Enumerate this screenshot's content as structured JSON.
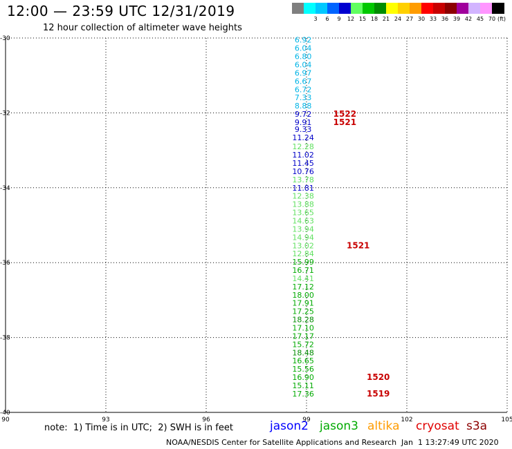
{
  "header": {
    "title": "12:00 — 23:59 UTC 12/31/2019",
    "subtitle": "12 hour collection of altimeter wave heights"
  },
  "colorbar": {
    "unit": "(ft)",
    "swatches": [
      {
        "color": "#7f7f7f",
        "label": ""
      },
      {
        "color": "#00ffff",
        "label": "3"
      },
      {
        "color": "#00c8ff",
        "label": "6"
      },
      {
        "color": "#0064ff",
        "label": "9"
      },
      {
        "color": "#0000d0",
        "label": "12"
      },
      {
        "color": "#60ff60",
        "label": "15"
      },
      {
        "color": "#00c800",
        "label": "18"
      },
      {
        "color": "#008c00",
        "label": "21"
      },
      {
        "color": "#ffff00",
        "label": "24"
      },
      {
        "color": "#ffd000",
        "label": "27"
      },
      {
        "color": "#ff9c00",
        "label": "30"
      },
      {
        "color": "#ff0000",
        "label": "33"
      },
      {
        "color": "#c80000",
        "label": "36"
      },
      {
        "color": "#8c0000",
        "label": "39"
      },
      {
        "color": "#a0009c",
        "label": "42"
      },
      {
        "color": "#d2b4ff",
        "label": "45"
      },
      {
        "color": "#ff96ff",
        "label": "70"
      },
      {
        "color": "#000000",
        "label": ""
      }
    ]
  },
  "chart_data": {
    "type": "scatter",
    "xlim": [
      90,
      105
    ],
    "ylim": [
      -40,
      -30
    ],
    "xticks": [
      "90",
      "93",
      "96",
      "99",
      "102",
      "105"
    ],
    "yticks": [
      "-30",
      "-32",
      "-34",
      "-36",
      "-38",
      "-40"
    ],
    "grid": true,
    "points": [
      {
        "lon": 98.9,
        "lat": -30.05,
        "v": "6.92",
        "color": "#00b4e6"
      },
      {
        "lon": 98.9,
        "lat": -30.27,
        "v": "6.04",
        "color": "#00b4e6"
      },
      {
        "lon": 98.9,
        "lat": -30.49,
        "v": "6.80",
        "color": "#00b4e6"
      },
      {
        "lon": 98.9,
        "lat": -30.71,
        "v": "6.04",
        "color": "#00b4e6"
      },
      {
        "lon": 98.9,
        "lat": -30.93,
        "v": "6.97",
        "color": "#00b4e6"
      },
      {
        "lon": 98.9,
        "lat": -31.15,
        "v": "6.67",
        "color": "#00b4e6"
      },
      {
        "lon": 98.9,
        "lat": -31.37,
        "v": "6.72",
        "color": "#00b4e6"
      },
      {
        "lon": 98.9,
        "lat": -31.59,
        "v": "7.33",
        "color": "#00b4e6"
      },
      {
        "lon": 98.9,
        "lat": -31.81,
        "v": "8.88",
        "color": "#00b4e6"
      },
      {
        "lon": 98.9,
        "lat": -32.03,
        "v": "9.72",
        "color": "#0000c8"
      },
      {
        "lon": 98.9,
        "lat": -32.25,
        "v": "9.91",
        "color": "#0000c8"
      },
      {
        "lon": 98.9,
        "lat": -32.44,
        "v": "9.33",
        "color": "#0000c8"
      },
      {
        "lon": 98.9,
        "lat": -32.66,
        "v": "11.24",
        "color": "#0000c8"
      },
      {
        "lon": 98.9,
        "lat": -32.9,
        "v": "12.28",
        "color": "#60e060"
      },
      {
        "lon": 98.9,
        "lat": -33.12,
        "v": "11.02",
        "color": "#0000c8"
      },
      {
        "lon": 98.9,
        "lat": -33.34,
        "v": "11.45",
        "color": "#0000c8"
      },
      {
        "lon": 98.9,
        "lat": -33.56,
        "v": "10.76",
        "color": "#0000c8"
      },
      {
        "lon": 98.9,
        "lat": -33.78,
        "v": "13.78",
        "color": "#60e060"
      },
      {
        "lon": 98.9,
        "lat": -34.0,
        "v": "11.81",
        "color": "#0000c8"
      },
      {
        "lon": 98.9,
        "lat": -34.22,
        "v": "12.38",
        "color": "#60e060"
      },
      {
        "lon": 98.9,
        "lat": -34.44,
        "v": "13.88",
        "color": "#60e060"
      },
      {
        "lon": 98.9,
        "lat": -34.66,
        "v": "13.65",
        "color": "#60e060"
      },
      {
        "lon": 98.9,
        "lat": -34.88,
        "v": "14.63",
        "color": "#60e060"
      },
      {
        "lon": 98.9,
        "lat": -35.1,
        "v": "13.94",
        "color": "#60e060"
      },
      {
        "lon": 98.9,
        "lat": -35.32,
        "v": "14.94",
        "color": "#60e060"
      },
      {
        "lon": 98.9,
        "lat": -35.54,
        "v": "13.02",
        "color": "#60e060"
      },
      {
        "lon": 98.9,
        "lat": -35.76,
        "v": "12.84",
        "color": "#60e060"
      },
      {
        "lon": 98.9,
        "lat": -35.98,
        "v": "15.99",
        "color": "#00aa00"
      },
      {
        "lon": 98.9,
        "lat": -36.2,
        "v": "16.71",
        "color": "#00aa00"
      },
      {
        "lon": 98.9,
        "lat": -36.42,
        "v": "14.41",
        "color": "#60e060"
      },
      {
        "lon": 98.9,
        "lat": -36.64,
        "v": "17.12",
        "color": "#00aa00"
      },
      {
        "lon": 98.9,
        "lat": -36.86,
        "v": "18.00",
        "color": "#00aa00"
      },
      {
        "lon": 98.9,
        "lat": -37.08,
        "v": "17.91",
        "color": "#00aa00"
      },
      {
        "lon": 98.9,
        "lat": -37.3,
        "v": "17.25",
        "color": "#00aa00"
      },
      {
        "lon": 98.9,
        "lat": -37.52,
        "v": "18.28",
        "color": "#008c00"
      },
      {
        "lon": 98.9,
        "lat": -37.74,
        "v": "17.10",
        "color": "#00aa00"
      },
      {
        "lon": 98.9,
        "lat": -37.96,
        "v": "17.17",
        "color": "#00aa00"
      },
      {
        "lon": 98.9,
        "lat": -38.18,
        "v": "15.72",
        "color": "#00aa00"
      },
      {
        "lon": 98.9,
        "lat": -38.4,
        "v": "18.48",
        "color": "#008c00"
      },
      {
        "lon": 98.9,
        "lat": -38.62,
        "v": "16.65",
        "color": "#00aa00"
      },
      {
        "lon": 98.9,
        "lat": -38.84,
        "v": "15.56",
        "color": "#00aa00"
      },
      {
        "lon": 98.9,
        "lat": -39.06,
        "v": "16.90",
        "color": "#00aa00"
      },
      {
        "lon": 98.9,
        "lat": -39.28,
        "v": "15.11",
        "color": "#00aa00"
      },
      {
        "lon": 98.9,
        "lat": -39.5,
        "v": "17.36",
        "color": "#00aa00"
      }
    ],
    "time_labels": [
      {
        "lon": 99.8,
        "lat": -32.03,
        "text": "1522"
      },
      {
        "lon": 99.8,
        "lat": -32.25,
        "text": "1521"
      },
      {
        "lon": 100.2,
        "lat": -35.54,
        "text": "1521"
      },
      {
        "lon": 100.8,
        "lat": -39.06,
        "text": "1520"
      },
      {
        "lon": 100.8,
        "lat": -39.5,
        "text": "1519"
      }
    ],
    "time_label_color": "#c80000"
  },
  "footer": {
    "note": "note:  1) Time is in UTC;  2) SWH is in feet",
    "satellites": [
      {
        "name": "jason2",
        "color": "#0000ff"
      },
      {
        "name": "jason3",
        "color": "#00aa00"
      },
      {
        "name": "altika",
        "color": "#ff9c00"
      },
      {
        "name": "cryosat",
        "color": "#e00000"
      },
      {
        "name": "s3a",
        "color": "#8c0000"
      }
    ],
    "credit": "NOAA/NESDIS Center for Satellite Applications and Research",
    "timestamp": "Jan  1 13:27:49 UTC 2020"
  }
}
